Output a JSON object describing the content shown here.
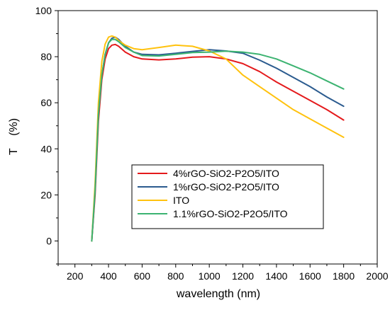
{
  "chart_data": {
    "type": "line",
    "title": "",
    "xlabel": "wavelength (nm)",
    "ylabel": "T    (%)",
    "xlim": [
      100,
      2000
    ],
    "ylim": [
      -10,
      100
    ],
    "x_ticks": [
      200,
      400,
      600,
      800,
      1000,
      1200,
      1400,
      1600,
      1800,
      2000
    ],
    "y_ticks": [
      0,
      20,
      40,
      60,
      80,
      100
    ],
    "grid": false,
    "legend_position": "bottom-center",
    "series": [
      {
        "name": "4%rGO-SiO2-P2O5/ITO",
        "color": "#e41a1c",
        "x": [
          300,
          320,
          340,
          360,
          380,
          400,
          420,
          440,
          460,
          500,
          550,
          600,
          700,
          800,
          900,
          1000,
          1100,
          1200,
          1300,
          1400,
          1500,
          1600,
          1700,
          1800
        ],
        "y": [
          0,
          20,
          52,
          70,
          79,
          83.5,
          85,
          85.3,
          84.5,
          82,
          80,
          79,
          78.6,
          79,
          79.8,
          80,
          79,
          77,
          73.5,
          69,
          65,
          61,
          57,
          52.5
        ]
      },
      {
        "name": "1%rGO-SiO2-P2O5/ITO",
        "color": "#2b5b8f",
        "x": [
          300,
          320,
          340,
          360,
          380,
          400,
          420,
          440,
          460,
          500,
          550,
          600,
          700,
          800,
          900,
          1000,
          1100,
          1200,
          1300,
          1400,
          1500,
          1600,
          1700,
          1800
        ],
        "y": [
          0,
          22,
          55,
          72,
          81,
          86,
          88,
          88.5,
          87.5,
          84.5,
          82,
          81,
          80.8,
          81.5,
          82.3,
          83,
          82.5,
          81.5,
          78.5,
          75,
          71,
          67,
          62.5,
          58.5
        ]
      },
      {
        "name": "ITO",
        "color": "#ffc20e",
        "x": [
          300,
          320,
          340,
          360,
          380,
          400,
          420,
          440,
          460,
          500,
          550,
          600,
          700,
          800,
          900,
          1000,
          1100,
          1200,
          1300,
          1400,
          1500,
          1600,
          1700,
          1800
        ],
        "y": [
          0,
          25,
          60,
          78,
          85.5,
          88.5,
          89,
          88.5,
          87,
          85,
          83.5,
          83,
          84,
          85,
          84.5,
          82.5,
          79,
          72,
          67,
          62,
          57,
          53,
          49,
          45
        ]
      },
      {
        "name": "1.1%rGO-SiO2-P2O5/ITO",
        "color": "#3cb371",
        "x": [
          300,
          320,
          340,
          360,
          380,
          400,
          420,
          440,
          460,
          500,
          550,
          600,
          700,
          800,
          900,
          1000,
          1100,
          1200,
          1300,
          1400,
          1500,
          1600,
          1700,
          1800
        ],
        "y": [
          0,
          22,
          55,
          72,
          81,
          86,
          87.5,
          87.5,
          86.5,
          84,
          82,
          80.5,
          80.3,
          81,
          81.8,
          82,
          82.4,
          82,
          81,
          79,
          76,
          73,
          69.5,
          66
        ]
      }
    ]
  }
}
